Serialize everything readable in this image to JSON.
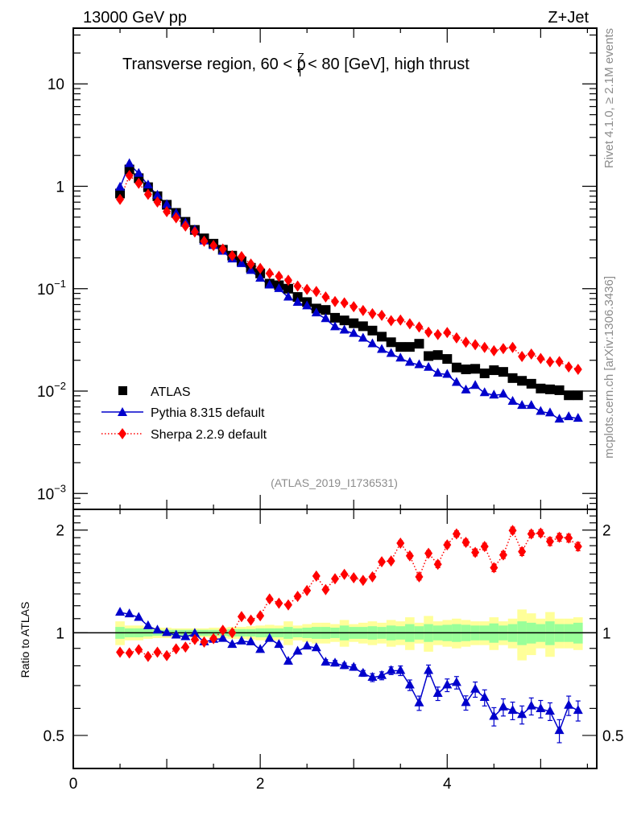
{
  "header": {
    "left": "13000 GeV pp",
    "right": "Z+Jet"
  },
  "side_text": {
    "rivet": "Rivet 4.1.0, ≥ 2.1M events",
    "mcplots": "mcplots.cern.ch [arXiv:1306.3436]"
  },
  "colors": {
    "atlas": "#000000",
    "pythia": "#0000cc",
    "sherpa": "#ff0000",
    "band_total": "#ffff99",
    "band_stat": "#99ff99",
    "annotation": "#8c8c8c"
  },
  "chart_data": [
    {
      "type": "scatter",
      "panel": "main",
      "title": "Transverse region, 60 < p_T^Z < 80 [GeV], high thrust",
      "title_parts": {
        "pre": "Transverse region, 60 < p",
        "sup": "Z",
        "sub": "T",
        "post": " < 80 [GeV], high thrust"
      },
      "annotation": "(ATLAS_2019_I1736531)",
      "xlabel": "",
      "ylabel": "",
      "yscale": "log",
      "xlim": [
        0,
        5.6
      ],
      "ylim": [
        0.0007,
        35
      ],
      "yticks": [
        {
          "value": 10,
          "label": "10"
        },
        {
          "value": 1,
          "label": "1"
        },
        {
          "value": 0.1,
          "base": "10",
          "exp": "−1"
        },
        {
          "value": 0.01,
          "base": "10",
          "exp": "−2"
        },
        {
          "value": 0.001,
          "base": "10",
          "exp": "−3"
        }
      ],
      "legend_position": "lower-left",
      "legend": [
        {
          "name": "ATLAS",
          "marker": "square"
        },
        {
          "name": "Pythia 8.315 default",
          "marker": "triangle",
          "line": "solid"
        },
        {
          "name": "Sherpa 2.2.9 default",
          "marker": "diamond",
          "line": "dotted"
        }
      ],
      "x": [
        0.5,
        0.6,
        0.7,
        0.8,
        0.9,
        1.0,
        1.1,
        1.2,
        1.3,
        1.4,
        1.5,
        1.6,
        1.7,
        1.8,
        1.9,
        2.0,
        2.1,
        2.2,
        2.3,
        2.4,
        2.5,
        2.6,
        2.7,
        2.8,
        2.9,
        3.0,
        3.1,
        3.2,
        3.3,
        3.4,
        3.5,
        3.6,
        3.7,
        3.8,
        3.9,
        4.0,
        4.1,
        4.2,
        4.3,
        4.4,
        4.5,
        4.6,
        4.7,
        4.8,
        4.9,
        5.0,
        5.1,
        5.2,
        5.3,
        5.4
      ],
      "series": [
        {
          "name": "ATLAS",
          "values": [
            0.85,
            1.46,
            1.2,
            0.98,
            0.8,
            0.66,
            0.55,
            0.45,
            0.375,
            0.31,
            0.275,
            0.24,
            0.21,
            0.185,
            0.16,
            0.141,
            0.112,
            0.108,
            0.1,
            0.083,
            0.074,
            0.064,
            0.062,
            0.052,
            0.049,
            0.046,
            0.043,
            0.039,
            0.034,
            0.03,
            0.027,
            0.027,
            0.029,
            0.022,
            0.0225,
            0.0206,
            0.017,
            0.0163,
            0.0165,
            0.0149,
            0.016,
            0.0154,
            0.0134,
            0.0126,
            0.0118,
            0.0106,
            0.0104,
            0.0102,
            0.0091,
            0.0091
          ]
        },
        {
          "name": "Pythia 8.315 default",
          "values": [
            0.975,
            1.656,
            1.33,
            1.026,
            0.814,
            0.66,
            0.541,
            0.437,
            0.373,
            0.291,
            0.263,
            0.231,
            0.194,
            0.175,
            0.15,
            0.126,
            0.108,
            0.0997,
            0.0824,
            0.0732,
            0.0676,
            0.0577,
            0.0508,
            0.0423,
            0.0392,
            0.0364,
            0.0327,
            0.0288,
            0.0254,
            0.0232,
            0.0209,
            0.019,
            0.018,
            0.017,
            0.0149,
            0.0145,
            0.0121,
            0.0102,
            0.0113,
            0.0096,
            0.0091,
            0.0093,
            0.0079,
            0.0072,
            0.0072,
            0.0063,
            0.0061,
            0.0053,
            0.0056,
            0.0054
          ]
        },
        {
          "name": "Sherpa 2.2.9 default",
          "values": [
            0.745,
            1.273,
            1.07,
            0.835,
            0.702,
            0.566,
            0.493,
            0.409,
            0.358,
            0.291,
            0.264,
            0.244,
            0.21,
            0.206,
            0.174,
            0.158,
            0.141,
            0.132,
            0.121,
            0.106,
            0.0984,
            0.0938,
            0.083,
            0.0749,
            0.0727,
            0.0667,
            0.0612,
            0.0569,
            0.0549,
            0.0487,
            0.0494,
            0.0454,
            0.0423,
            0.0376,
            0.0357,
            0.0373,
            0.0331,
            0.03,
            0.0284,
            0.0267,
            0.0248,
            0.026,
            0.0267,
            0.0218,
            0.023,
            0.0208,
            0.0193,
            0.0194,
            0.0172,
            0.0163
          ]
        }
      ]
    },
    {
      "type": "scatter",
      "panel": "ratio",
      "ylabel": "Ratio to ATLAS",
      "xlabel": "",
      "yscale": "log",
      "xlim": [
        0,
        5.6
      ],
      "ylim": [
        0.4,
        2.3
      ],
      "yticks": [
        {
          "value": 2,
          "label": "2"
        },
        {
          "value": 1,
          "label": "1"
        },
        {
          "value": 0.5,
          "label": "0.5"
        }
      ],
      "xticks": [
        {
          "value": 0,
          "label": "0"
        },
        {
          "value": 2,
          "label": "2"
        },
        {
          "value": 4,
          "label": "4"
        }
      ],
      "reference_line": 1,
      "x": [
        0.5,
        0.6,
        0.7,
        0.8,
        0.9,
        1.0,
        1.1,
        1.2,
        1.3,
        1.4,
        1.5,
        1.6,
        1.7,
        1.8,
        1.9,
        2.0,
        2.1,
        2.2,
        2.3,
        2.4,
        2.5,
        2.6,
        2.7,
        2.8,
        2.9,
        3.0,
        3.1,
        3.2,
        3.3,
        3.4,
        3.5,
        3.6,
        3.7,
        3.8,
        3.9,
        4.0,
        4.1,
        4.2,
        4.3,
        4.4,
        4.5,
        4.6,
        4.7,
        4.8,
        4.9,
        5.0,
        5.1,
        5.2,
        5.3,
        5.4
      ],
      "bands": {
        "total_rel_err": [
          0.08,
          0.05,
          0.05,
          0.04,
          0.035,
          0.035,
          0.03,
          0.03,
          0.03,
          0.03,
          0.035,
          0.035,
          0.04,
          0.04,
          0.045,
          0.05,
          0.055,
          0.05,
          0.08,
          0.05,
          0.06,
          0.07,
          0.07,
          0.06,
          0.09,
          0.06,
          0.07,
          0.08,
          0.07,
          0.09,
          0.08,
          0.11,
          0.07,
          0.12,
          0.08,
          0.09,
          0.1,
          0.09,
          0.08,
          0.08,
          0.11,
          0.08,
          0.1,
          0.17,
          0.14,
          0.1,
          0.15,
          0.1,
          0.1,
          0.11
        ],
        "stat_rel_err": [
          0.04,
          0.03,
          0.03,
          0.025,
          0.02,
          0.02,
          0.02,
          0.02,
          0.02,
          0.02,
          0.02,
          0.02,
          0.025,
          0.025,
          0.025,
          0.03,
          0.03,
          0.03,
          0.04,
          0.03,
          0.035,
          0.04,
          0.04,
          0.035,
          0.05,
          0.04,
          0.04,
          0.045,
          0.04,
          0.05,
          0.045,
          0.06,
          0.045,
          0.06,
          0.05,
          0.055,
          0.06,
          0.055,
          0.05,
          0.05,
          0.065,
          0.05,
          0.06,
          0.08,
          0.07,
          0.06,
          0.08,
          0.06,
          0.06,
          0.07
        ]
      },
      "series": [
        {
          "name": "Pythia 8.315 default / ATLAS",
          "values": [
            1.147,
            1.134,
            1.108,
            1.047,
            1.017,
            1.0,
            0.983,
            0.972,
            0.994,
            0.939,
            0.955,
            0.961,
            0.923,
            0.944,
            0.939,
            0.892,
            0.961,
            0.923,
            0.824,
            0.882,
            0.913,
            0.902,
            0.819,
            0.814,
            0.8,
            0.791,
            0.76,
            0.739,
            0.748,
            0.774,
            0.774,
            0.702,
            0.622,
            0.774,
            0.663,
            0.702,
            0.714,
            0.623,
            0.682,
            0.645,
            0.568,
            0.605,
            0.591,
            0.575,
            0.609,
            0.598,
            0.588,
            0.516,
            0.612,
            0.591
          ],
          "errors": [
            0.01,
            0.01,
            0.01,
            0.01,
            0.01,
            0.01,
            0.01,
            0.01,
            0.01,
            0.01,
            0.01,
            0.01,
            0.01,
            0.01,
            0.01,
            0.01,
            0.01,
            0.01,
            0.012,
            0.012,
            0.012,
            0.012,
            0.015,
            0.015,
            0.015,
            0.015,
            0.015,
            0.02,
            0.02,
            0.02,
            0.025,
            0.025,
            0.03,
            0.03,
            0.03,
            0.03,
            0.03,
            0.03,
            0.035,
            0.035,
            0.035,
            0.035,
            0.035,
            0.035,
            0.035,
            0.035,
            0.035,
            0.04,
            0.04,
            0.04
          ]
        },
        {
          "name": "Sherpa 2.2.9 default / ATLAS",
          "values": [
            0.877,
            0.872,
            0.892,
            0.852,
            0.877,
            0.857,
            0.897,
            0.908,
            0.955,
            0.939,
            0.961,
            1.017,
            1.0,
            1.115,
            1.089,
            1.121,
            1.256,
            1.221,
            1.207,
            1.278,
            1.33,
            1.466,
            1.338,
            1.44,
            1.483,
            1.449,
            1.424,
            1.458,
            1.615,
            1.624,
            1.831,
            1.681,
            1.458,
            1.71,
            1.587,
            1.81,
            1.949,
            1.841,
            1.72,
            1.79,
            1.551,
            1.691,
            1.995,
            1.729,
            1.949,
            1.96,
            1.852,
            1.905,
            1.895,
            1.79
          ],
          "errors": [
            0.01,
            0.01,
            0.01,
            0.01,
            0.01,
            0.01,
            0.01,
            0.01,
            0.01,
            0.01,
            0.01,
            0.01,
            0.01,
            0.01,
            0.01,
            0.01,
            0.01,
            0.012,
            0.012,
            0.012,
            0.015,
            0.015,
            0.015,
            0.015,
            0.015,
            0.02,
            0.02,
            0.02,
            0.02,
            0.025,
            0.03,
            0.03,
            0.03,
            0.03,
            0.035,
            0.035,
            0.04,
            0.04,
            0.04,
            0.04,
            0.04,
            0.04,
            0.045,
            0.045,
            0.045,
            0.045,
            0.05,
            0.05,
            0.05,
            0.05
          ]
        }
      ]
    }
  ]
}
